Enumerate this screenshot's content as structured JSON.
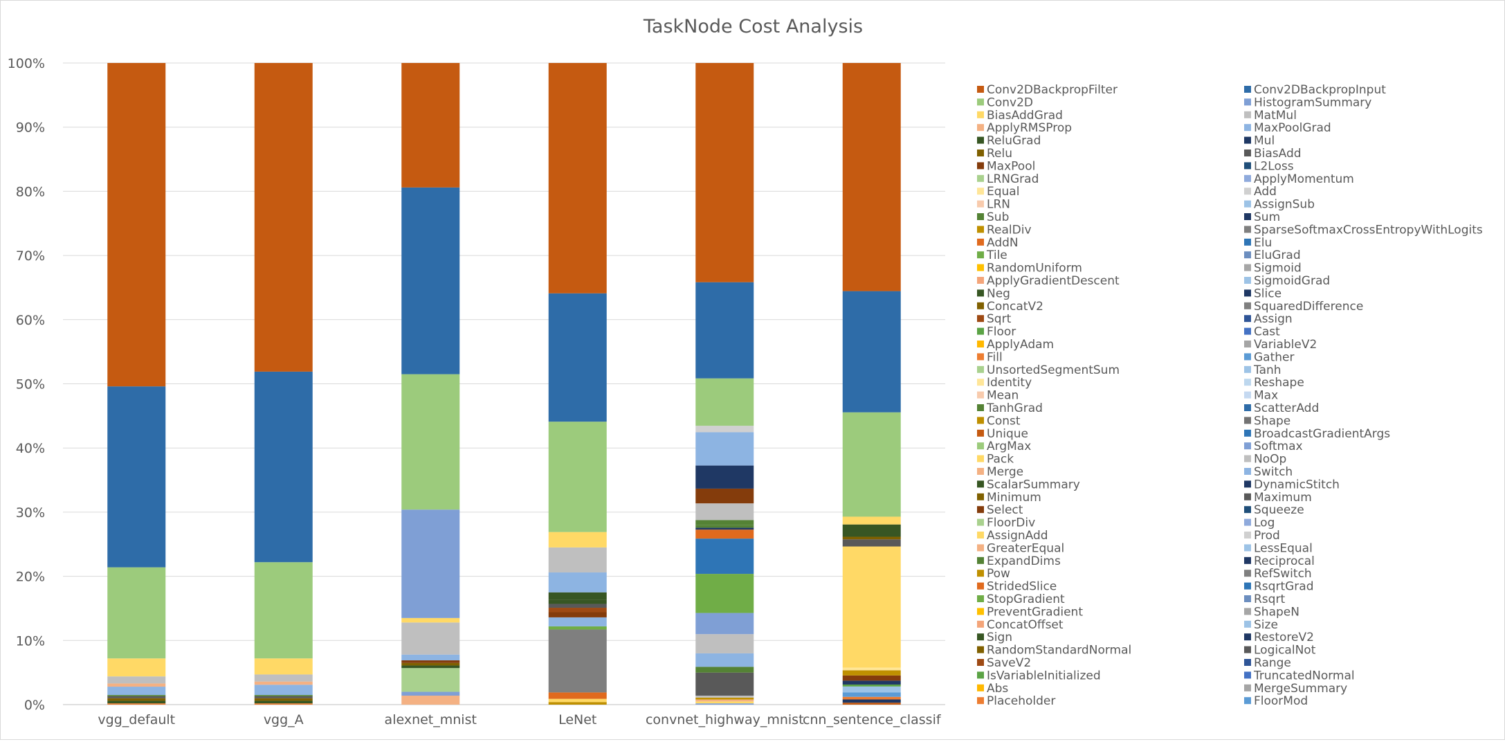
{
  "chart_data": {
    "type": "bar",
    "stacked": "percent",
    "title": "TaskNode Cost Analysis",
    "xlabel": "",
    "ylabel": "",
    "ylim": [
      0,
      100
    ],
    "ytick_labels": [
      "0%",
      "10%",
      "20%",
      "30%",
      "40%",
      "50%",
      "60%",
      "70%",
      "80%",
      "90%",
      "100%"
    ],
    "grid": true,
    "legend_position": "right",
    "categories": [
      "vgg_default",
      "vgg_A",
      "alexnet_mnist",
      "LeNet",
      "convnet_highway_mnist",
      "cnn_sentence_classif"
    ],
    "legend_col1": [
      {
        "name": "Conv2DBackpropFilter",
        "color": "#C55A11"
      },
      {
        "name": "Conv2D",
        "color": "#9CCB7C"
      },
      {
        "name": "BiasAddGrad",
        "color": "#FFD966"
      },
      {
        "name": "ApplyRMSProp",
        "color": "#F4B183"
      },
      {
        "name": "ReluGrad",
        "color": "#375623"
      },
      {
        "name": "Relu",
        "color": "#7F6000"
      },
      {
        "name": "MaxPool",
        "color": "#843C0C"
      },
      {
        "name": "LRNGrad",
        "color": "#A9D18E"
      },
      {
        "name": "Equal",
        "color": "#FFE699"
      },
      {
        "name": "LRN",
        "color": "#F8CBAD"
      },
      {
        "name": "Sub",
        "color": "#548235"
      },
      {
        "name": "RealDiv",
        "color": "#BF9000"
      },
      {
        "name": "AddN",
        "color": "#E06A1E"
      },
      {
        "name": "Tile",
        "color": "#70AD47"
      },
      {
        "name": "RandomUniform",
        "color": "#FFC000"
      },
      {
        "name": "ApplyGradientDescent",
        "color": "#F4A57A"
      },
      {
        "name": "Neg",
        "color": "#375623"
      },
      {
        "name": "ConcatV2",
        "color": "#806000"
      },
      {
        "name": "Sqrt",
        "color": "#9E4A14"
      },
      {
        "name": "Floor",
        "color": "#5BA345"
      },
      {
        "name": "ApplyAdam",
        "color": "#FFB800"
      },
      {
        "name": "Fill",
        "color": "#ED7D31"
      },
      {
        "name": "UnsortedSegmentSum",
        "color": "#A9D18E"
      },
      {
        "name": "Identity",
        "color": "#FFE699"
      },
      {
        "name": "Mean",
        "color": "#F8CBAD"
      },
      {
        "name": "TanhGrad",
        "color": "#548235"
      },
      {
        "name": "Const",
        "color": "#BF8F00"
      },
      {
        "name": "Unique",
        "color": "#C55A11"
      },
      {
        "name": "ArgMax",
        "color": "#9CCB7C"
      },
      {
        "name": "Pack",
        "color": "#FFD966"
      },
      {
        "name": "Merge",
        "color": "#F4B183"
      },
      {
        "name": "ScalarSummary",
        "color": "#375623"
      },
      {
        "name": "Minimum",
        "color": "#7F6000"
      },
      {
        "name": "Select",
        "color": "#843C0C"
      },
      {
        "name": "FloorDiv",
        "color": "#A9D18E"
      },
      {
        "name": "AssignAdd",
        "color": "#FFD966"
      },
      {
        "name": "GreaterEqual",
        "color": "#F4B183"
      },
      {
        "name": "ExpandDims",
        "color": "#548235"
      },
      {
        "name": "Pow",
        "color": "#BF9000"
      },
      {
        "name": "StridedSlice",
        "color": "#E06A1E"
      },
      {
        "name": "StopGradient",
        "color": "#70AD47"
      },
      {
        "name": "PreventGradient",
        "color": "#FFC000"
      },
      {
        "name": "ConcatOffset",
        "color": "#F4A57A"
      },
      {
        "name": "Sign",
        "color": "#375623"
      },
      {
        "name": "RandomStandardNormal",
        "color": "#806000"
      },
      {
        "name": "SaveV2",
        "color": "#9E4A14"
      },
      {
        "name": "IsVariableInitialized",
        "color": "#5BA345"
      },
      {
        "name": "Abs",
        "color": "#FFB800"
      },
      {
        "name": "Placeholder",
        "color": "#ED7D31"
      }
    ],
    "legend_col2": [
      {
        "name": "Conv2DBackpropInput",
        "color": "#2E6CA8"
      },
      {
        "name": "HistogramSummary",
        "color": "#7F9FD5"
      },
      {
        "name": "MatMul",
        "color": "#BFBFBF"
      },
      {
        "name": "MaxPoolGrad",
        "color": "#8DB4E2"
      },
      {
        "name": "Mul",
        "color": "#1F3864"
      },
      {
        "name": "BiasAdd",
        "color": "#595959"
      },
      {
        "name": "L2Loss",
        "color": "#1F4E79"
      },
      {
        "name": "ApplyMomentum",
        "color": "#8FAADC"
      },
      {
        "name": "Add",
        "color": "#D0D0D0"
      },
      {
        "name": "AssignSub",
        "color": "#9DC3E6"
      },
      {
        "name": "Sum",
        "color": "#203864"
      },
      {
        "name": "SparseSoftmaxCrossEntropyWithLogits",
        "color": "#7F7F7F"
      },
      {
        "name": "Elu",
        "color": "#2E75B6"
      },
      {
        "name": "EluGrad",
        "color": "#6C8EBF"
      },
      {
        "name": "Sigmoid",
        "color": "#A6A6A6"
      },
      {
        "name": "SigmoidGrad",
        "color": "#9DC3E6"
      },
      {
        "name": "Slice",
        "color": "#1F3864"
      },
      {
        "name": "SquaredDifference",
        "color": "#7F7F7F"
      },
      {
        "name": "Assign",
        "color": "#2F5597"
      },
      {
        "name": "Cast",
        "color": "#4472C4"
      },
      {
        "name": "VariableV2",
        "color": "#A5A5A5"
      },
      {
        "name": "Gather",
        "color": "#5B9BD5"
      },
      {
        "name": "Tanh",
        "color": "#9DC3E6"
      },
      {
        "name": "Reshape",
        "color": "#BDD7EE"
      },
      {
        "name": "Max",
        "color": "#C5D9F1"
      },
      {
        "name": "ScatterAdd",
        "color": "#2E6CA8"
      },
      {
        "name": "Shape",
        "color": "#737373"
      },
      {
        "name": "BroadcastGradientArgs",
        "color": "#2E75B6"
      },
      {
        "name": "Softmax",
        "color": "#7F9FD5"
      },
      {
        "name": "NoOp",
        "color": "#BFBFBF"
      },
      {
        "name": "Switch",
        "color": "#8DB4E2"
      },
      {
        "name": "DynamicStitch",
        "color": "#1F3864"
      },
      {
        "name": "Maximum",
        "color": "#595959"
      },
      {
        "name": "Squeeze",
        "color": "#1F4E79"
      },
      {
        "name": "Log",
        "color": "#8FAADC"
      },
      {
        "name": "Prod",
        "color": "#D0D0D0"
      },
      {
        "name": "LessEqual",
        "color": "#9DC3E6"
      },
      {
        "name": "Reciprocal",
        "color": "#203864"
      },
      {
        "name": "RefSwitch",
        "color": "#7F7F7F"
      },
      {
        "name": "RsqrtGrad",
        "color": "#2E75B6"
      },
      {
        "name": "Rsqrt",
        "color": "#6C8EBF"
      },
      {
        "name": "ShapeN",
        "color": "#A6A6A6"
      },
      {
        "name": "Size",
        "color": "#9DC3E6"
      },
      {
        "name": "RestoreV2",
        "color": "#1F3864"
      },
      {
        "name": "LogicalNot",
        "color": "#595959"
      },
      {
        "name": "Range",
        "color": "#2F5597"
      },
      {
        "name": "TruncatedNormal",
        "color": "#4472C4"
      },
      {
        "name": "MergeSummary",
        "color": "#A5A5A5"
      },
      {
        "name": "FloorMod",
        "color": "#5B9BD5"
      }
    ],
    "stacks": [
      [
        {
          "name": "Placeholder",
          "value": 0.2
        },
        {
          "name": "ReluGrad",
          "value": 0.4
        },
        {
          "name": "Relu",
          "value": 0.4
        },
        {
          "name": "BiasAdd",
          "value": 0.3
        },
        {
          "name": "Sub",
          "value": 0.2
        },
        {
          "name": "MaxPoolGrad",
          "value": 1.3
        },
        {
          "name": "ApplyRMSProp",
          "value": 0.5
        },
        {
          "name": "MatMul",
          "value": 1.1
        },
        {
          "name": "BiasAddGrad",
          "value": 2.8
        },
        {
          "name": "Conv2D",
          "value": 14.2
        },
        {
          "name": "Conv2DBackpropInput",
          "value": 28.2
        },
        {
          "name": "Conv2DBackpropFilter",
          "value": 50.4
        }
      ],
      [
        {
          "name": "Placeholder",
          "value": 0.2
        },
        {
          "name": "ReluGrad",
          "value": 0.4
        },
        {
          "name": "Relu",
          "value": 0.4
        },
        {
          "name": "BiasAdd",
          "value": 0.3
        },
        {
          "name": "Sub",
          "value": 0.2
        },
        {
          "name": "MaxPoolGrad",
          "value": 1.6
        },
        {
          "name": "ApplyRMSProp",
          "value": 0.5
        },
        {
          "name": "MatMul",
          "value": 1.1
        },
        {
          "name": "BiasAddGrad",
          "value": 2.5
        },
        {
          "name": "Conv2D",
          "value": 15.0
        },
        {
          "name": "Conv2DBackpropInput",
          "value": 29.7
        },
        {
          "name": "Conv2DBackpropFilter",
          "value": 48.1
        }
      ],
      [
        {
          "name": "ApplyRMSProp",
          "value": 1.4
        },
        {
          "name": "HistogramSummary",
          "value": 0.6
        },
        {
          "name": "LRNGrad",
          "value": 3.7
        },
        {
          "name": "ReluGrad",
          "value": 0.4
        },
        {
          "name": "Relu",
          "value": 0.4
        },
        {
          "name": "MaxPool",
          "value": 0.4
        },
        {
          "name": "MaxPoolGrad",
          "value": 0.9
        },
        {
          "name": "MatMul",
          "value": 5.0
        },
        {
          "name": "BiasAddGrad",
          "value": 0.7
        },
        {
          "name": "HistogramSummary",
          "value": 16.9
        },
        {
          "name": "Conv2D",
          "value": 21.1
        },
        {
          "name": "Conv2DBackpropInput",
          "value": 29.1
        },
        {
          "name": "Conv2DBackpropFilter",
          "value": 19.4
        }
      ],
      [
        {
          "name": "RealDiv",
          "value": 0.4
        },
        {
          "name": "BiasAddGrad",
          "value": 0.5
        },
        {
          "name": "AddN",
          "value": 1.0
        },
        {
          "name": "SparseSoftmaxCrossEntropyWithLogits",
          "value": 9.8
        },
        {
          "name": "Tile",
          "value": 0.5
        },
        {
          "name": "MaxPoolGrad",
          "value": 1.4
        },
        {
          "name": "MaxPool",
          "value": 0.8
        },
        {
          "name": "Sqrt",
          "value": 0.7
        },
        {
          "name": "BiasAdd",
          "value": 0.6
        },
        {
          "name": "ReluGrad",
          "value": 0.6
        },
        {
          "name": "Neg",
          "value": 1.2
        },
        {
          "name": "MaxPoolGrad",
          "value": 3.1
        },
        {
          "name": "MatMul",
          "value": 3.9
        },
        {
          "name": "BiasAddGrad",
          "value": 2.4
        },
        {
          "name": "Conv2D",
          "value": 17.2
        },
        {
          "name": "Conv2DBackpropInput",
          "value": 20.0
        },
        {
          "name": "Conv2DBackpropFilter",
          "value": 35.9
        }
      ],
      [
        {
          "name": "HistogramSummary",
          "value": 0.2
        },
        {
          "name": "BiasAddGrad",
          "value": 0.3
        },
        {
          "name": "ApplyRMSProp",
          "value": 0.3
        },
        {
          "name": "RealDiv",
          "value": 0.3
        },
        {
          "name": "MatMul",
          "value": 0.3
        },
        {
          "name": "BiasAdd",
          "value": 3.6
        },
        {
          "name": "Sub",
          "value": 0.9
        },
        {
          "name": "MaxPoolGrad",
          "value": 2.1
        },
        {
          "name": "MatMul",
          "value": 3.0
        },
        {
          "name": "HistogramSummary",
          "value": 3.3
        },
        {
          "name": "Tile",
          "value": 6.1
        },
        {
          "name": "Elu",
          "value": 5.5
        },
        {
          "name": "AddN",
          "value": 1.4
        },
        {
          "name": "Mul",
          "value": 0.3
        },
        {
          "name": "TanhGrad",
          "value": 0.4
        },
        {
          "name": "Sub",
          "value": 0.8
        },
        {
          "name": "MatMul",
          "value": 2.6
        },
        {
          "name": "MaxPool",
          "value": 2.3
        },
        {
          "name": "Mul",
          "value": 3.6
        },
        {
          "name": "MaxPoolGrad",
          "value": 5.2
        },
        {
          "name": "Add",
          "value": 1.0
        },
        {
          "name": "Conv2D",
          "value": 7.4
        },
        {
          "name": "Conv2DBackpropInput",
          "value": 15.0
        },
        {
          "name": "Conv2DBackpropFilter",
          "value": 34.2
        }
      ],
      [
        {
          "name": "Unique",
          "value": 0.3
        },
        {
          "name": "Mul",
          "value": 0.5
        },
        {
          "name": "Fill",
          "value": 0.4
        },
        {
          "name": "Gather",
          "value": 0.7
        },
        {
          "name": "AssignSub",
          "value": 0.9
        },
        {
          "name": "Floor",
          "value": 0.3
        },
        {
          "name": "Sum",
          "value": 0.6
        },
        {
          "name": "Select",
          "value": 0.8
        },
        {
          "name": "RealDiv",
          "value": 0.8
        },
        {
          "name": "Identity",
          "value": 0.4
        },
        {
          "name": "BiasAddGrad",
          "value": 18.7
        },
        {
          "name": "BiasAdd",
          "value": 1.1
        },
        {
          "name": "Relu",
          "value": 0.4
        },
        {
          "name": "ReluGrad",
          "value": 1.9
        },
        {
          "name": "BiasAddGrad",
          "value": 1.2
        },
        {
          "name": "Conv2D",
          "value": 16.1
        },
        {
          "name": "Conv2DBackpropInput",
          "value": 18.7
        },
        {
          "name": "Conv2DBackpropFilter",
          "value": 35.2
        }
      ]
    ]
  }
}
